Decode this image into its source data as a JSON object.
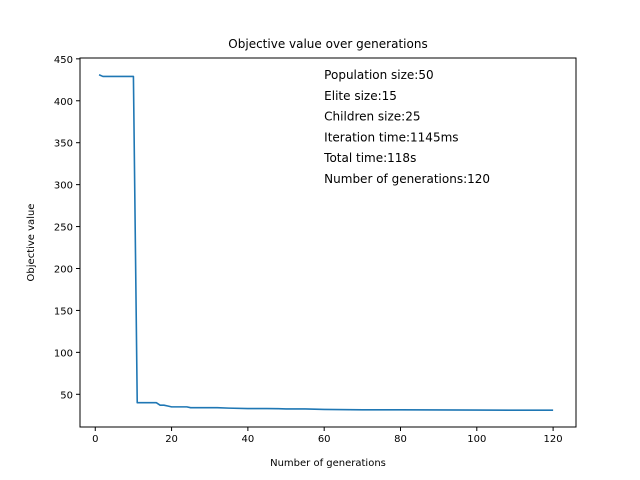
{
  "chart_data": {
    "type": "line",
    "title": "Objective value over generations",
    "xlabel": "Number of generations",
    "ylabel": "Objective value",
    "xlim": [
      -4,
      126
    ],
    "ylim": [
      11,
      451
    ],
    "xticks": [
      0,
      20,
      40,
      60,
      80,
      100,
      120
    ],
    "yticks": [
      50,
      100,
      150,
      200,
      250,
      300,
      350,
      400,
      450
    ],
    "grid": false,
    "line_color": "#1f77b4",
    "annotations": [
      "Population size:50",
      "Elite size:15",
      "Children size:25",
      "Iteration time:1145ms",
      "Total time:118s",
      "Number of generations:120"
    ],
    "series": [
      {
        "x": [
          1,
          2,
          3,
          5,
          10,
          11,
          16,
          17,
          18,
          19,
          20,
          22,
          24,
          25,
          28,
          30,
          32,
          35,
          40,
          45,
          48,
          50,
          55,
          60,
          70,
          80,
          90,
          100,
          110,
          120
        ],
        "y": [
          431,
          429,
          429,
          429,
          429,
          40,
          40,
          37,
          37,
          36,
          35,
          35,
          35,
          34,
          34,
          34,
          34,
          33.5,
          33,
          33,
          32.8,
          32.5,
          32.5,
          32,
          31.5,
          31.5,
          31.3,
          31.2,
          31,
          31
        ]
      }
    ]
  }
}
